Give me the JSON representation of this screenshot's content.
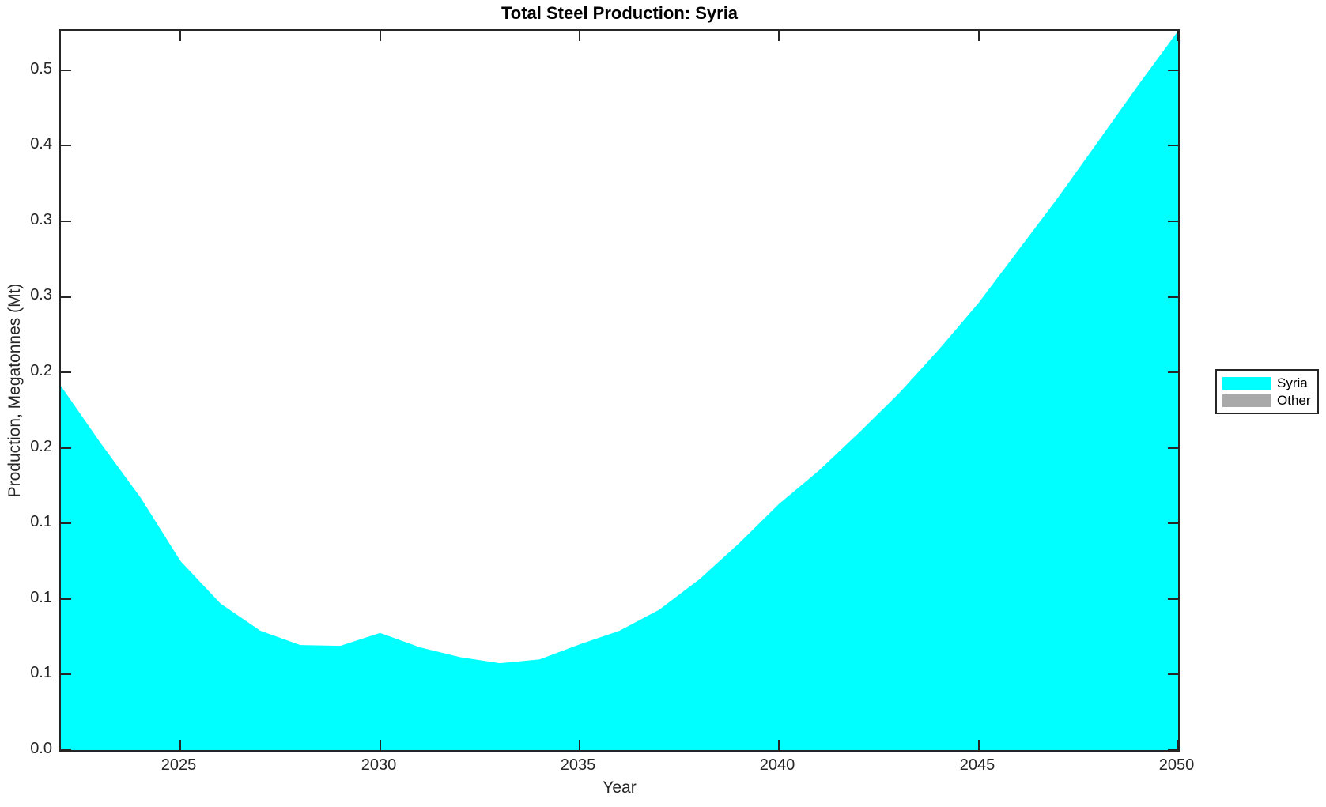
{
  "figure": {
    "title": "Total Steel Production: Syria",
    "xlabel": "Year",
    "ylabel": "Production, Megatonnes (Mt)",
    "background_color": "#ffffff",
    "axis_color": "#262626",
    "title_color": "#000000"
  },
  "legend": {
    "position": "outside-right",
    "entries": [
      {
        "label": "Syria",
        "color": "#00ffff"
      },
      {
        "label": "Other",
        "color": "#a9a9a9"
      }
    ]
  },
  "chart_data": {
    "type": "area",
    "title": "Total Steel Production: Syria",
    "xlabel": "Year",
    "ylabel": "Production, Megatonnes (Mt)",
    "units": "Mt",
    "x": [
      2022,
      2023,
      2024,
      2025,
      2026,
      2027,
      2028,
      2029,
      2030,
      2031,
      2032,
      2033,
      2034,
      2035,
      2036,
      2037,
      2038,
      2039,
      2040,
      2041,
      2042,
      2043,
      2044,
      2045,
      2046,
      2047,
      2048,
      2049,
      2050
    ],
    "series": [
      {
        "name": "Syria",
        "color": "#00ffff",
        "values": [
          0.241,
          0.203,
          0.167,
          0.125,
          0.097,
          0.079,
          0.0695,
          0.069,
          0.0775,
          0.068,
          0.0615,
          0.0575,
          0.06,
          0.07,
          0.079,
          0.093,
          0.113,
          0.137,
          0.163,
          0.185,
          0.21,
          0.236,
          0.265,
          0.296,
          0.331,
          0.366,
          0.403,
          0.44,
          0.476
        ]
      },
      {
        "name": "Other",
        "color": "#a9a9a9",
        "values": [
          0,
          0,
          0,
          0,
          0,
          0,
          0,
          0,
          0,
          0,
          0,
          0,
          0,
          0,
          0,
          0,
          0,
          0,
          0,
          0,
          0,
          0,
          0,
          0,
          0,
          0,
          0,
          0,
          0
        ]
      }
    ],
    "xlim": [
      2022,
      2050
    ],
    "ylim": [
      0,
      0.476
    ],
    "x_ticks": [
      2025,
      2030,
      2035,
      2040,
      2045,
      2050
    ],
    "x_tick_labels": [
      "2025",
      "2030",
      "2035",
      "2040",
      "2045",
      "2050"
    ],
    "y_ticks": [
      0,
      0.05,
      0.1,
      0.15,
      0.2,
      0.25,
      0.3,
      0.35,
      0.4,
      0.45
    ],
    "y_tick_labels": [
      "0.0",
      "0.1",
      "0.1",
      "0.1",
      "0.2",
      "0.2",
      "0.3",
      "0.3",
      "0.4",
      "0.5"
    ],
    "grid": false,
    "tick_direction": "in",
    "legend_entries": [
      "Syria",
      "Other"
    ],
    "legend_position": "outside-right"
  }
}
